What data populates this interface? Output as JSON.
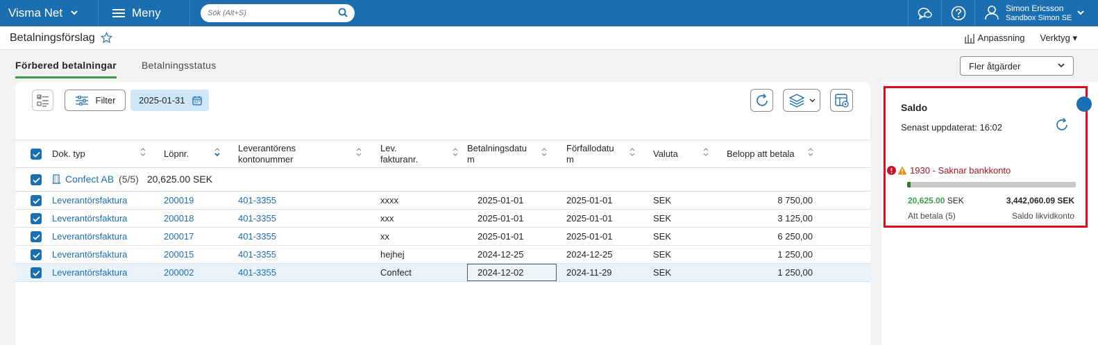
{
  "topbar": {
    "brand": "Visma Net",
    "menu": "Meny",
    "search_placeholder": "Sök (Alt+S)",
    "user_name": "Simon Ericsson",
    "user_company": "Sandbox Simon SE"
  },
  "page": {
    "title": "Betalningsförslag",
    "anpassning": "Anpassning",
    "verktyg": "Verktyg"
  },
  "tabs": [
    {
      "label": "Förbered betalningar",
      "active": true
    },
    {
      "label": "Betalningsstatus",
      "active": false
    }
  ],
  "actions": {
    "fler_atgarder": "Fler åtgärder",
    "filter": "Filter",
    "date": "2025-01-31"
  },
  "table": {
    "columns": {
      "dok_typ": "Dok. typ",
      "lopnr": "Löpnr.",
      "lev_konto_1": "Leverantörens",
      "lev_konto_2": "kontonummer",
      "lev_fakt_1": "Lev.",
      "lev_fakt_2": "fakturanr.",
      "betdatum_1": "Betalningsdatu",
      "betdatum_2": "m",
      "forfall_1": "Förfallodatu",
      "forfall_2": "m",
      "valuta": "Valuta",
      "belopp": "Belopp att betala"
    },
    "group": {
      "name": "Confect AB",
      "count": "(5/5)",
      "sum": "20,625.00 SEK"
    },
    "rows": [
      {
        "doktyp": "Leverantörsfaktura",
        "lopnr": "200019",
        "konto": "401-3355",
        "faktnr": "xxxx",
        "betdatum": "2025-01-01",
        "forfall": "2025-01-01",
        "valuta": "SEK",
        "belopp": "8 750,00"
      },
      {
        "doktyp": "Leverantörsfaktura",
        "lopnr": "200018",
        "konto": "401-3355",
        "faktnr": "xxx",
        "betdatum": "2025-01-01",
        "forfall": "2025-01-01",
        "valuta": "SEK",
        "belopp": "3 125,00"
      },
      {
        "doktyp": "Leverantörsfaktura",
        "lopnr": "200017",
        "konto": "401-3355",
        "faktnr": "xx",
        "betdatum": "2025-01-01",
        "forfall": "2025-01-01",
        "valuta": "SEK",
        "belopp": "6 250,00"
      },
      {
        "doktyp": "Leverantörsfaktura",
        "lopnr": "200015",
        "konto": "401-3355",
        "faktnr": "hejhej",
        "betdatum": "2024-12-25",
        "forfall": "2024-12-25",
        "valuta": "SEK",
        "belopp": "1 250,00"
      },
      {
        "doktyp": "Leverantörsfaktura",
        "lopnr": "200002",
        "konto": "401-3355",
        "faktnr": "Confect",
        "betdatum": "2024-12-02",
        "forfall": "2024-11-29",
        "valuta": "SEK",
        "belopp": "1 250,00"
      }
    ]
  },
  "saldo": {
    "title": "Saldo",
    "updated": "Senast uppdaterat: 16:02",
    "warning": "1930 - Saknar bankkonto",
    "to_pay_amount": "20,625.00",
    "to_pay_currency": "SEK",
    "balance": "3,442,060.09 SEK",
    "to_pay_label": "Att betala (5)",
    "balance_label": "Saldo likvidkonto",
    "progress_fraction": 0.006
  },
  "colors": {
    "brand_blue": "#1b6eaf",
    "accent_green": "#3aa04e",
    "highlight_red": "#e20b17"
  }
}
